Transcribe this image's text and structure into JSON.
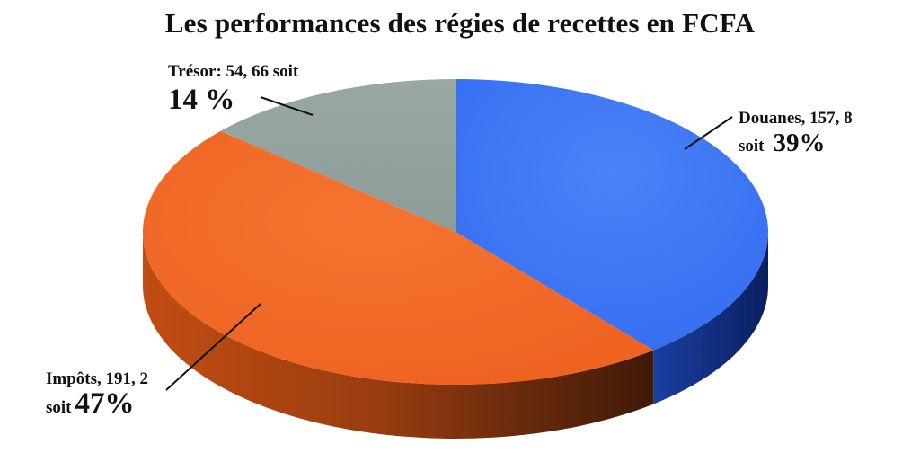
{
  "chart_data": {
    "type": "pie",
    "title": "Les performances des régies de recettes en FCFA",
    "slices": [
      {
        "name": "Douanes",
        "value": 157.8,
        "value_text": "157, 8",
        "percent_text": "39%",
        "color": "#3d77f5"
      },
      {
        "name": "Impôts",
        "value": 191.2,
        "value_text": "191, 2",
        "percent_text": "47%",
        "color": "#f26a25"
      },
      {
        "name": "Trésor",
        "value": 54.66,
        "value_text": "54, 66",
        "percent_text": "14 %",
        "color": "#95a39f"
      }
    ],
    "labels": {
      "douanes": {
        "line1": "Douanes, 157, 8",
        "soit": "soit",
        "pct": "39%"
      },
      "impots": {
        "line1": "Impôts, 191, 2",
        "soit": "soit",
        "pct": "47%"
      },
      "tresor": {
        "line1": "Trésor: 54, 66 soit",
        "pct": "14 %"
      }
    },
    "style": "3d"
  }
}
